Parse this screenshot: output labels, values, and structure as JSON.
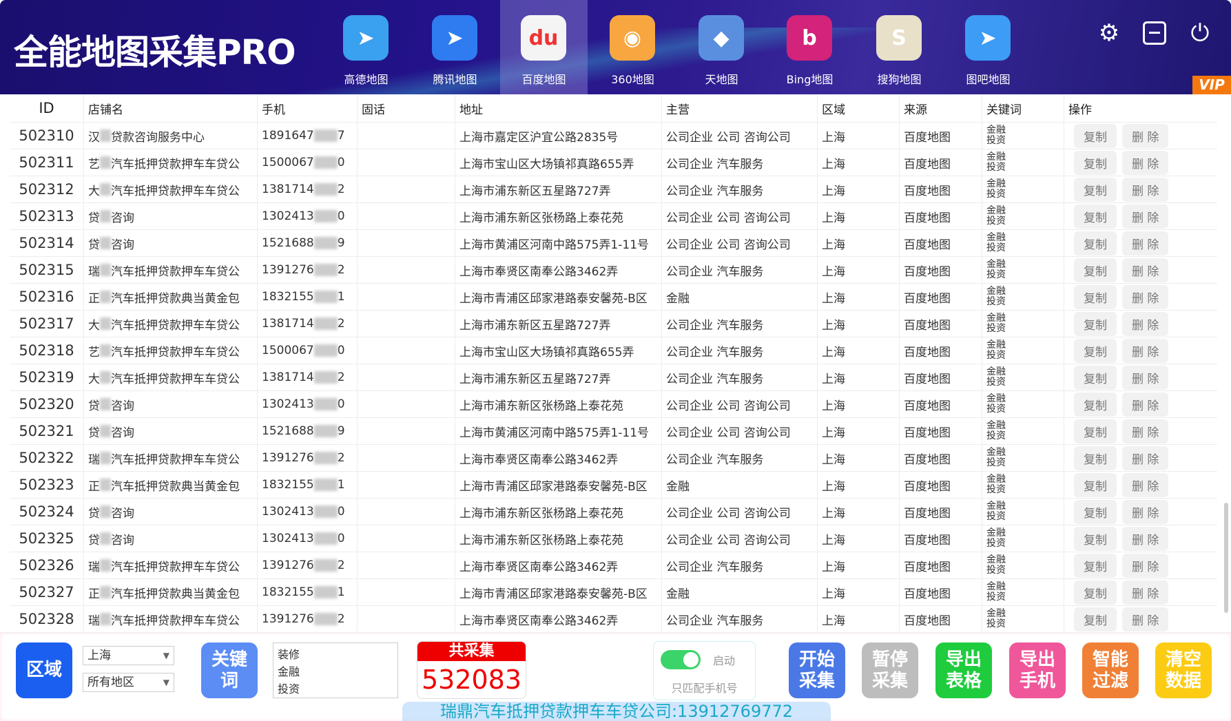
{
  "app": {
    "title": "全能地图采集PRO",
    "vip": "VIP"
  },
  "maps": [
    {
      "label": "高德地图",
      "icon": "gaode-map-icon",
      "color": "#3aa0f0",
      "glyph": "➤"
    },
    {
      "label": "腾讯地图",
      "icon": "tencent-map-icon",
      "color": "#2f7cf0",
      "glyph": "➤"
    },
    {
      "label": "百度地图",
      "icon": "baidu-map-icon",
      "color": "#f4f4f4",
      "glyph": "du",
      "selected": true
    },
    {
      "label": "360地图",
      "icon": "map-360-icon",
      "color": "#f7a640",
      "glyph": "◉"
    },
    {
      "label": "天地图",
      "icon": "tianditu-map-icon",
      "color": "#5a8fe0",
      "glyph": "◆"
    },
    {
      "label": "Bing地图",
      "icon": "bing-map-icon",
      "color": "#d4237a",
      "glyph": "b"
    },
    {
      "label": "搜狗地图",
      "icon": "sogou-map-icon",
      "color": "#e8e0c8",
      "glyph": "S"
    },
    {
      "label": "图吧地图",
      "icon": "tuba-map-icon",
      "color": "#3c9cf6",
      "glyph": "➤"
    }
  ],
  "columns": [
    "ID",
    "店铺名",
    "手机",
    "固话",
    "地址",
    "主营",
    "区域",
    "来源",
    "关键词",
    "操作"
  ],
  "row_actions": {
    "copy": "复制",
    "delete": "删 除"
  },
  "rows": [
    {
      "id": "502310",
      "name_a": "汉",
      "name_b": "贷款咨询服务中心",
      "phone_a": "1891647",
      "phone_b": "7",
      "tel": "",
      "addr": "上海市嘉定区沪宜公路2835号",
      "main": "公司企业 公司 咨询公司",
      "region": "上海",
      "source": "百度地图",
      "kw": [
        "金融",
        "投资"
      ]
    },
    {
      "id": "502311",
      "name_a": "艺",
      "name_b": "汽车抵押贷款押车车贷公",
      "phone_a": "1500067",
      "phone_b": "0",
      "tel": "",
      "addr": "上海市宝山区大场镇祁真路655弄",
      "main": "公司企业 汽车服务",
      "region": "上海",
      "source": "百度地图",
      "kw": [
        "金融",
        "投资"
      ]
    },
    {
      "id": "502312",
      "name_a": "大",
      "name_b": "汽车抵押贷款押车车贷公",
      "phone_a": "1381714",
      "phone_b": "2",
      "tel": "",
      "addr": "上海市浦东新区五星路727弄",
      "main": "公司企业 汽车服务",
      "region": "上海",
      "source": "百度地图",
      "kw": [
        "金融",
        "投资"
      ]
    },
    {
      "id": "502313",
      "name_a": "贷",
      "name_b": "咨询",
      "phone_a": "1302413",
      "phone_b": "0",
      "tel": "",
      "addr": "上海市浦东新区张杨路上泰花苑",
      "main": "公司企业 公司 咨询公司",
      "region": "上海",
      "source": "百度地图",
      "kw": [
        "金融",
        "投资"
      ]
    },
    {
      "id": "502314",
      "name_a": "贷",
      "name_b": "咨询",
      "phone_a": "1521688",
      "phone_b": "9",
      "tel": "",
      "addr": "上海市黄浦区河南中路575弄1-11号",
      "main": "公司企业 公司 咨询公司",
      "region": "上海",
      "source": "百度地图",
      "kw": [
        "金融",
        "投资"
      ]
    },
    {
      "id": "502315",
      "name_a": "瑞",
      "name_b": "汽车抵押贷款押车车贷公",
      "phone_a": "1391276",
      "phone_b": "2",
      "tel": "",
      "addr": "上海市奉贤区南奉公路3462弄",
      "main": "公司企业 汽车服务",
      "region": "上海",
      "source": "百度地图",
      "kw": [
        "金融",
        "投资"
      ]
    },
    {
      "id": "502316",
      "name_a": "正",
      "name_b": "汽车抵押贷款典当黄金包",
      "phone_a": "1832155",
      "phone_b": "1",
      "tel": "",
      "addr": "上海市青浦区邱家港路泰安馨苑-B区",
      "main": "金融",
      "region": "上海",
      "source": "百度地图",
      "kw": [
        "金融",
        "投资"
      ]
    },
    {
      "id": "502317",
      "name_a": "大",
      "name_b": "汽车抵押贷款押车车贷公",
      "phone_a": "1381714",
      "phone_b": "2",
      "tel": "",
      "addr": "上海市浦东新区五星路727弄",
      "main": "公司企业 汽车服务",
      "region": "上海",
      "source": "百度地图",
      "kw": [
        "金融",
        "投资"
      ]
    },
    {
      "id": "502318",
      "name_a": "艺",
      "name_b": "汽车抵押贷款押车车贷公",
      "phone_a": "1500067",
      "phone_b": "0",
      "tel": "",
      "addr": "上海市宝山区大场镇祁真路655弄",
      "main": "公司企业 汽车服务",
      "region": "上海",
      "source": "百度地图",
      "kw": [
        "金融",
        "投资"
      ]
    },
    {
      "id": "502319",
      "name_a": "大",
      "name_b": "汽车抵押贷款押车车贷公",
      "phone_a": "1381714",
      "phone_b": "2",
      "tel": "",
      "addr": "上海市浦东新区五星路727弄",
      "main": "公司企业 汽车服务",
      "region": "上海",
      "source": "百度地图",
      "kw": [
        "金融",
        "投资"
      ]
    },
    {
      "id": "502320",
      "name_a": "贷",
      "name_b": "咨询",
      "phone_a": "1302413",
      "phone_b": "0",
      "tel": "",
      "addr": "上海市浦东新区张杨路上泰花苑",
      "main": "公司企业 公司 咨询公司",
      "region": "上海",
      "source": "百度地图",
      "kw": [
        "金融",
        "投资"
      ]
    },
    {
      "id": "502321",
      "name_a": "贷",
      "name_b": "咨询",
      "phone_a": "1521688",
      "phone_b": "9",
      "tel": "",
      "addr": "上海市黄浦区河南中路575弄1-11号",
      "main": "公司企业 公司 咨询公司",
      "region": "上海",
      "source": "百度地图",
      "kw": [
        "金融",
        "投资"
      ]
    },
    {
      "id": "502322",
      "name_a": "瑞",
      "name_b": "汽车抵押贷款押车车贷公",
      "phone_a": "1391276",
      "phone_b": "2",
      "tel": "",
      "addr": "上海市奉贤区南奉公路3462弄",
      "main": "公司企业 汽车服务",
      "region": "上海",
      "source": "百度地图",
      "kw": [
        "金融",
        "投资"
      ]
    },
    {
      "id": "502323",
      "name_a": "正",
      "name_b": "汽车抵押贷款典当黄金包",
      "phone_a": "1832155",
      "phone_b": "1",
      "tel": "",
      "addr": "上海市青浦区邱家港路泰安馨苑-B区",
      "main": "金融",
      "region": "上海",
      "source": "百度地图",
      "kw": [
        "金融",
        "投资"
      ]
    },
    {
      "id": "502324",
      "name_a": "贷",
      "name_b": "咨询",
      "phone_a": "1302413",
      "phone_b": "0",
      "tel": "",
      "addr": "上海市浦东新区张杨路上泰花苑",
      "main": "公司企业 公司 咨询公司",
      "region": "上海",
      "source": "百度地图",
      "kw": [
        "金融",
        "投资"
      ]
    },
    {
      "id": "502325",
      "name_a": "贷",
      "name_b": "咨询",
      "phone_a": "1302413",
      "phone_b": "0",
      "tel": "",
      "addr": "上海市浦东新区张杨路上泰花苑",
      "main": "公司企业 公司 咨询公司",
      "region": "上海",
      "source": "百度地图",
      "kw": [
        "金融",
        "投资"
      ]
    },
    {
      "id": "502326",
      "name_a": "瑞",
      "name_b": "汽车抵押贷款押车车贷公",
      "phone_a": "1391276",
      "phone_b": "2",
      "tel": "",
      "addr": "上海市奉贤区南奉公路3462弄",
      "main": "公司企业 汽车服务",
      "region": "上海",
      "source": "百度地图",
      "kw": [
        "金融",
        "投资"
      ]
    },
    {
      "id": "502327",
      "name_a": "正",
      "name_b": "汽车抵押贷款典当黄金包",
      "phone_a": "1832155",
      "phone_b": "1",
      "tel": "",
      "addr": "上海市青浦区邱家港路泰安馨苑-B区",
      "main": "金融",
      "region": "上海",
      "source": "百度地图",
      "kw": [
        "金融",
        "投资"
      ]
    },
    {
      "id": "502328",
      "name_a": "瑞",
      "name_b": "汽车抵押贷款押车车贷公",
      "phone_a": "1391276",
      "phone_b": "2",
      "tel": "",
      "addr": "上海市奉贤区南奉公路3462弄",
      "main": "公司企业 汽车服务",
      "region": "上海",
      "source": "百度地图",
      "kw": [
        "金融",
        "投资"
      ]
    }
  ],
  "toast": "瑞鼎汽车抵押贷款押车车贷公司:13912769772",
  "bottom": {
    "region_button": "区域",
    "province": "上海",
    "district": "所有地区",
    "keyword_button": "关键\n词",
    "keywords": [
      "装修",
      "金融",
      "投资"
    ],
    "count_label": "共采集",
    "count": "532083",
    "toggle_on_label": "启动",
    "toggle_caption": "只匹配手机号",
    "toggle_enabled": true,
    "buttons": [
      {
        "label": "开始\n采集",
        "color": "#4a78e6",
        "name": "start-collect-button"
      },
      {
        "label": "暂停\n采集",
        "color": "#bdbdbd",
        "name": "pause-collect-button"
      },
      {
        "label": "导出\n表格",
        "color": "#1fcc3e",
        "name": "export-table-button"
      },
      {
        "label": "导出\n手机",
        "color": "#f0579a",
        "name": "export-phone-button"
      },
      {
        "label": "智能\n过滤",
        "color": "#f08036",
        "name": "smart-filter-button"
      },
      {
        "label": "清空\n数据",
        "color": "#fccc14",
        "name": "clear-data-button"
      }
    ]
  }
}
